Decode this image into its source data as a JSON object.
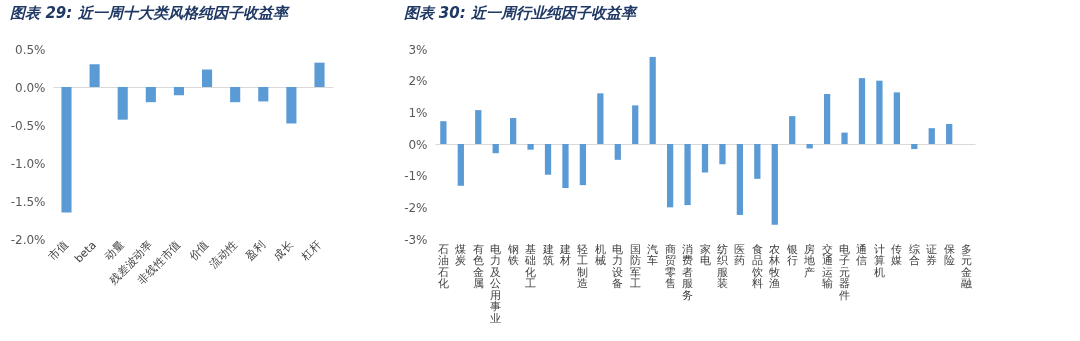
{
  "chart_data": [
    {
      "type": "bar",
      "title": "图表 29: 近一周十大类风格纯因子收益率",
      "categories": [
        "市值",
        "beta",
        "动量",
        "残差波动率",
        "非线性市值",
        "价值",
        "流动性",
        "盈利",
        "成长",
        "杠杆"
      ],
      "values": [
        -1.65,
        0.3,
        -0.43,
        -0.2,
        -0.11,
        0.23,
        -0.2,
        -0.19,
        -0.48,
        0.32
      ],
      "color": "#5b9bd5",
      "ylim": [
        -2,
        0.5
      ],
      "yticks": [
        {
          "value": -2,
          "label": "-2.0%"
        },
        {
          "value": -1.5,
          "label": "-1.5%"
        },
        {
          "value": -1,
          "label": "-1.0%"
        },
        {
          "value": -0.5,
          "label": "-0.5%"
        },
        {
          "value": 0,
          "label": "0.0%"
        },
        {
          "value": 0.5,
          "label": "0.5%"
        }
      ]
    },
    {
      "type": "bar",
      "title": "图表 30: 近一周行业纯因子收益率",
      "categories": [
        "石油石化",
        "煤炭",
        "有色金属",
        "电力及公用事业",
        "钢铁",
        "基础化工",
        "建筑",
        "建材",
        "轻工制造",
        "机械",
        "电力设备",
        "国防军工",
        "汽车",
        "商贸零售",
        "消费者服务",
        "家电",
        "纺织服装",
        "医药",
        "食品饮料",
        "农林牧渔",
        "银行",
        "房地产",
        "交通运输",
        "电子元器件",
        "通信",
        "计算机",
        "传媒",
        "综合",
        "证券",
        "保险",
        "多元金融"
      ],
      "values": [
        0.72,
        -1.32,
        1.07,
        -0.29,
        0.82,
        -0.18,
        -0.97,
        -1.39,
        -1.3,
        1.6,
        -0.5,
        1.22,
        2.75,
        -2.0,
        -1.93,
        -0.9,
        -0.64,
        -2.24,
        -1.1,
        -2.55,
        0.88,
        -0.14,
        1.58,
        0.36,
        2.08,
        2.0,
        1.63,
        -0.16,
        0.5,
        0.63,
        0
      ],
      "color": "#5b9bd5",
      "ylim": [
        -3,
        3
      ],
      "yticks": [
        {
          "value": -3,
          "label": "-3%"
        },
        {
          "value": -2,
          "label": "-2%"
        },
        {
          "value": -1,
          "label": "-1%"
        },
        {
          "value": 0,
          "label": "0%"
        },
        {
          "value": 1,
          "label": "1%"
        },
        {
          "value": 2,
          "label": "2%"
        },
        {
          "value": 3,
          "label": "3%"
        }
      ]
    }
  ]
}
